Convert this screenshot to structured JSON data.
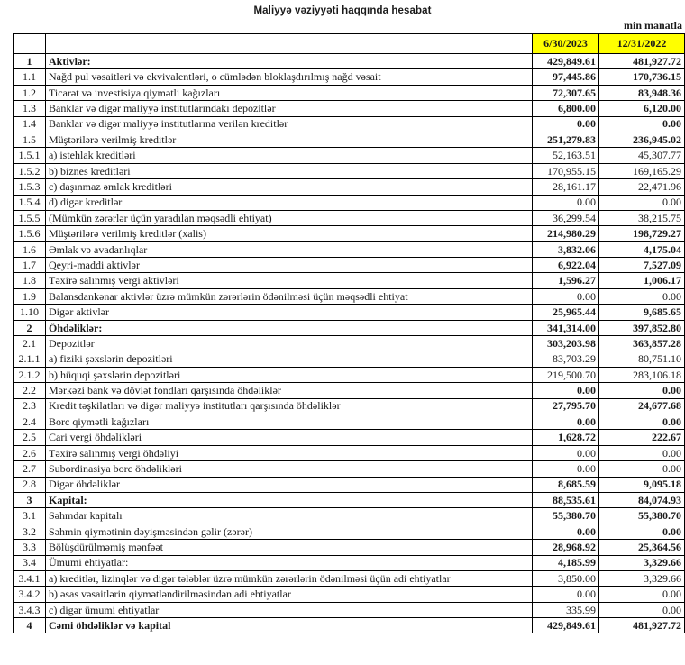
{
  "title": "Maliyyə vəziyyəti haqqında hesabat",
  "unit_note": "min manatla",
  "columns": [
    "6/30/2023",
    "12/31/2022"
  ],
  "colors": {
    "header_highlight": "#FFFF00",
    "border": "#000000",
    "text": "#1a1a1a"
  },
  "rows": [
    {
      "num": "1",
      "label": "Aktivlər:",
      "v1": "429,849.61",
      "v2": "481,927.72",
      "bold_label": true,
      "bold_values": true
    },
    {
      "num": "1.1",
      "label": "Nağd pul vəsaitləri və  ekvivalentləri, o cümlədən bloklaşdırılmış nağd vəsait",
      "v1": "97,445.86",
      "v2": "170,736.15",
      "bold_label": false,
      "bold_values": true
    },
    {
      "num": "1.2",
      "label": "Ticarət və investisiya qiymətli kağızları",
      "v1": "72,307.65",
      "v2": "83,948.36",
      "bold_label": false,
      "bold_values": true
    },
    {
      "num": "1.3",
      "label": "Banklar və digər maliyyə institutlarındakı depozitlər",
      "v1": "6,800.00",
      "v2": "6,120.00",
      "bold_label": false,
      "bold_values": true
    },
    {
      "num": "1.4",
      "label": "Banklar və digər maliyyə institutlarına verilən kreditlər",
      "v1": "0.00",
      "v2": "0.00",
      "bold_label": false,
      "bold_values": true
    },
    {
      "num": "1.5",
      "label": "Müştərilərə verilmiş kreditlər",
      "v1": "251,279.83",
      "v2": "236,945.02",
      "bold_label": false,
      "bold_values": true
    },
    {
      "num": "1.5.1",
      "label": "a) istehlak kreditləri",
      "v1": "52,163.51",
      "v2": "45,307.77",
      "bold_label": false,
      "bold_values": false
    },
    {
      "num": "1.5.2",
      "label": "b) biznes kreditləri",
      "v1": "170,955.15",
      "v2": "169,165.29",
      "bold_label": false,
      "bold_values": false
    },
    {
      "num": "1.5.3",
      "label": "c) daşınmaz əmlak kreditləri",
      "v1": "28,161.17",
      "v2": "22,471.96",
      "bold_label": false,
      "bold_values": false
    },
    {
      "num": "1.5.4",
      "label": "d) digər kreditlər",
      "v1": "0.00",
      "v2": "0.00",
      "bold_label": false,
      "bold_values": false
    },
    {
      "num": "1.5.5",
      "label": "(Mümkün zərərlər üçün yaradılan məqsədli ehtiyat)",
      "v1": "36,299.54",
      "v2": "38,215.75",
      "bold_label": false,
      "bold_values": false
    },
    {
      "num": "1.5.6",
      "label": "Müştərilərə verilmiş kreditlər (xalis)",
      "v1": "214,980.29",
      "v2": "198,729.27",
      "bold_label": false,
      "bold_values": true
    },
    {
      "num": "1.6",
      "label": "Əmlak və avadanlıqlar",
      "v1": "3,832.06",
      "v2": "4,175.04",
      "bold_label": false,
      "bold_values": true
    },
    {
      "num": "1.7",
      "label": "Qeyri-maddi aktivlər",
      "v1": "6,922.04",
      "v2": "7,527.09",
      "bold_label": false,
      "bold_values": true
    },
    {
      "num": "1.8",
      "label": "Təxirə salınmış vergi aktivləri",
      "v1": "1,596.27",
      "v2": "1,006.17",
      "bold_label": false,
      "bold_values": true
    },
    {
      "num": "1.9",
      "label": "Balansdankənar aktivlər üzrə mümkün zərərlərin ödənilməsi üçün məqsədli ehtiyat",
      "v1": "0.00",
      "v2": "0.00",
      "bold_label": false,
      "bold_values": false
    },
    {
      "num": "1.10",
      "label": "Digər aktivlər",
      "v1": "25,965.44",
      "v2": "9,685.65",
      "bold_label": false,
      "bold_values": true
    },
    {
      "num": "2",
      "label": "Öhdəliklər:",
      "v1": "341,314.00",
      "v2": "397,852.80",
      "bold_label": true,
      "bold_values": true
    },
    {
      "num": "2.1",
      "label": "Depozitlər",
      "v1": "303,203.98",
      "v2": "363,857.28",
      "bold_label": false,
      "bold_values": true
    },
    {
      "num": "2.1.1",
      "label": "a) fiziki şəxslərin depozitləri",
      "v1": "83,703.29",
      "v2": "80,751.10",
      "bold_label": false,
      "bold_values": false
    },
    {
      "num": "2.1.2",
      "label": "b) hüquqi şəxslərin depozitləri",
      "v1": "219,500.70",
      "v2": "283,106.18",
      "bold_label": false,
      "bold_values": false
    },
    {
      "num": "2.2",
      "label": "Mərkəzi bank və dövlət fondları qarşısında öhdəliklər",
      "v1": "0.00",
      "v2": "0.00",
      "bold_label": false,
      "bold_values": true
    },
    {
      "num": "2.3",
      "label": "Kredit təşkilatları və digər maliyyə institutları qarşısında öhdəliklər",
      "v1": "27,795.70",
      "v2": "24,677.68",
      "bold_label": false,
      "bold_values": true
    },
    {
      "num": "2.4",
      "label": "Borc qiymətli kağızları",
      "v1": "0.00",
      "v2": "0.00",
      "bold_label": false,
      "bold_values": true
    },
    {
      "num": "2.5",
      "label": "Cari vergi öhdəlikləri",
      "v1": "1,628.72",
      "v2": "222.67",
      "bold_label": false,
      "bold_values": true
    },
    {
      "num": "2.6",
      "label": "Təxirə salınmış vergi öhdəliyi",
      "v1": "0.00",
      "v2": "0.00",
      "bold_label": false,
      "bold_values": false
    },
    {
      "num": "2.7",
      "label": "Subordinasiya borc öhdəlikləri",
      "v1": "0.00",
      "v2": "0.00",
      "bold_label": false,
      "bold_values": false
    },
    {
      "num": "2.8",
      "label": "Digər öhdəliklər",
      "v1": "8,685.59",
      "v2": "9,095.18",
      "bold_label": false,
      "bold_values": true
    },
    {
      "num": "3",
      "label": "Kapital:",
      "v1": "88,535.61",
      "v2": "84,074.93",
      "bold_label": true,
      "bold_values": true
    },
    {
      "num": "3.1",
      "label": "Səhmdar kapitalı",
      "v1": "55,380.70",
      "v2": "55,380.70",
      "bold_label": false,
      "bold_values": true
    },
    {
      "num": "3.2",
      "label": "Səhmin qiymətinin dəyişməsindən gəlir (zərər)",
      "v1": "0.00",
      "v2": "0.00",
      "bold_label": false,
      "bold_values": true
    },
    {
      "num": "3.3",
      "label": "Bölüşdürülməmiş mənfəət",
      "v1": "28,968.92",
      "v2": "25,364.56",
      "bold_label": false,
      "bold_values": true
    },
    {
      "num": "3.4",
      "label": "Ümumi ehtiyatlar:",
      "v1": "4,185.99",
      "v2": "3,329.66",
      "bold_label": false,
      "bold_values": true
    },
    {
      "num": "3.4.1",
      "label": "a) kreditlər, lizinqlər və digər tələblər üzrə mümkün zərərlərin ödənilməsi üçün adi ehtiyatlar",
      "v1": "3,850.00",
      "v2": "3,329.66",
      "bold_label": false,
      "bold_values": false
    },
    {
      "num": "3.4.2",
      "label": "b) əsas vəsaitlərin qiymətləndirilməsindən adi ehtiyatlar",
      "v1": "0.00",
      "v2": "0.00",
      "bold_label": false,
      "bold_values": false
    },
    {
      "num": "3.4.3",
      "label": "c) digər ümumi ehtiyatlar",
      "v1": "335.99",
      "v2": "0.00",
      "bold_label": false,
      "bold_values": false
    },
    {
      "num": "4",
      "label": "Cəmi öhdəliklər və kapital",
      "v1": "429,849.61",
      "v2": "481,927.72",
      "bold_label": true,
      "bold_values": true
    }
  ]
}
